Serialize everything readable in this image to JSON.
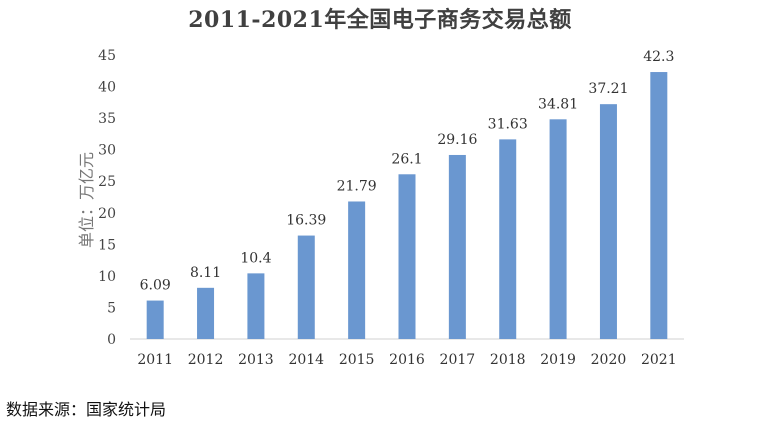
{
  "title": "2011-2021年全国电子商务交易总额",
  "source": "数据来源：国家统计局",
  "chart_data": {
    "type": "bar",
    "title": "2011-2021年全国电子商务交易总额",
    "ylabel": "单位：万亿元",
    "xlabel": "",
    "categories": [
      "2011",
      "2012",
      "2013",
      "2014",
      "2015",
      "2016",
      "2017",
      "2018",
      "2019",
      "2020",
      "2021"
    ],
    "values": [
      6.09,
      8.11,
      10.4,
      16.39,
      21.79,
      26.1,
      29.16,
      31.63,
      34.81,
      37.21,
      42.3
    ],
    "data_labels": [
      "6.09",
      "8.11",
      "10.4",
      "16.39",
      "21.79",
      "26.1",
      "29.16",
      "31.63",
      "34.81",
      "37.21",
      "42.3"
    ],
    "ylim": [
      0,
      45
    ],
    "yticks": [
      0,
      5,
      10,
      15,
      20,
      25,
      30,
      35,
      40,
      45
    ],
    "grid": false,
    "legend": "none",
    "bar_color": "#6a97d0"
  }
}
